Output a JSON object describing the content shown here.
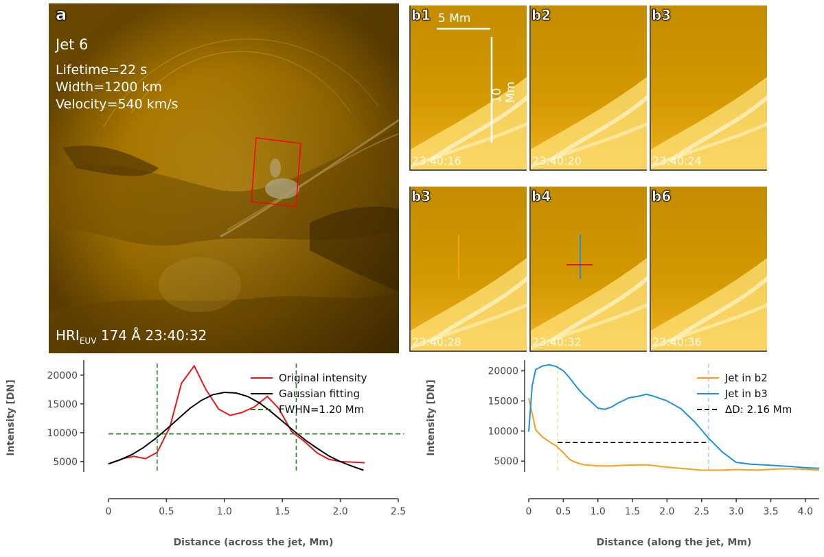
{
  "panel_a": {
    "tag": "a",
    "jet_name": "Jet 6",
    "lifetime": "Lifetime=22 s",
    "width": "Width=1200 km",
    "velocity": "Velocity=540 km/s",
    "instrument_main": "HRI",
    "instrument_sub": "EUV",
    "instrument_rest": " 174 Å 23:40:32"
  },
  "panels_b": [
    {
      "tag": "b1",
      "time": "23:40:16"
    },
    {
      "tag": "b2",
      "time": "23:40:20"
    },
    {
      "tag": "b3",
      "time": "23:40:24"
    },
    {
      "tag": "b3",
      "time": "23:40:28"
    },
    {
      "tag": "b4",
      "time": "23:40:32"
    },
    {
      "tag": "b6",
      "time": "23:40:36"
    }
  ],
  "scale_bars": {
    "horizontal": "5 Mm",
    "vertical": "10 Mm"
  },
  "colors": {
    "aia": "#d49a00",
    "red": "#e8161b",
    "blue": "#1f8fe0",
    "orange": "#f5a01a",
    "green": "#1a7f1a",
    "black": "#000000"
  },
  "chart_data": [
    {
      "type": "line",
      "xlabel": "Distance (across the jet, Mm)",
      "ylabel": "Intensity [DN]",
      "xlim": [
        0,
        2.5
      ],
      "ylim": [
        3200,
        22000
      ],
      "xticks": [
        "0",
        "0.5",
        "1.0",
        "1.5",
        "2.0",
        "2.5"
      ],
      "xtick_values": [
        0,
        0.5,
        1.0,
        1.5,
        2.0,
        2.5
      ],
      "yticks": [
        "5000",
        "10000",
        "15000",
        "20000"
      ],
      "ytick_values": [
        5000,
        10000,
        15000,
        20000
      ],
      "legend_position": "top-right",
      "series": [
        {
          "name": "Original intensity",
          "color": "#e8161b",
          "x": [
            0,
            0.12,
            0.22,
            0.32,
            0.42,
            0.53,
            0.63,
            0.74,
            0.84,
            0.95,
            1.05,
            1.15,
            1.26,
            1.37,
            1.47,
            1.58,
            1.69,
            1.8,
            1.9,
            2.0,
            2.11,
            2.21
          ],
          "y": [
            4600,
            5500,
            5900,
            5500,
            6600,
            11000,
            18600,
            21600,
            17500,
            14100,
            13000,
            13500,
            14500,
            16300,
            14200,
            10200,
            8500,
            6500,
            5400,
            5000,
            4900,
            4800
          ]
        },
        {
          "name": "Gaussian fitting",
          "color": "#000000",
          "x": [
            0,
            0.1,
            0.2,
            0.3,
            0.4,
            0.5,
            0.6,
            0.7,
            0.8,
            0.9,
            1.0,
            1.1,
            1.2,
            1.3,
            1.4,
            1.5,
            1.6,
            1.7,
            1.8,
            1.9,
            2.0,
            2.1,
            2.2
          ],
          "y": [
            4600,
            5300,
            6200,
            7400,
            8900,
            10600,
            12400,
            14200,
            15600,
            16600,
            17000,
            16900,
            16300,
            15200,
            13700,
            12000,
            10300,
            8700,
            7300,
            6000,
            5000,
            4200,
            3500
          ]
        },
        {
          "name": "FWHN=1.20 Mm",
          "color": "#1a7f1a",
          "dashed": true,
          "x": [
            0,
            2.55
          ],
          "y": [
            9800,
            9800
          ]
        }
      ],
      "vlines": [
        0.42,
        1.62
      ]
    },
    {
      "type": "line",
      "xlabel": "Distance (along the jet, Mm)",
      "ylabel": "Intensity [DN]",
      "xlim": [
        0,
        4.2
      ],
      "ylim": [
        3200,
        21200
      ],
      "xticks": [
        "0",
        "0.5",
        "1.0",
        "1.5",
        "2.0",
        "2.5",
        "3.0",
        "3.5",
        "4.0"
      ],
      "xtick_values": [
        0,
        0.5,
        1.0,
        1.5,
        2.0,
        2.5,
        3.0,
        3.5,
        4.0
      ],
      "yticks": [
        "5000",
        "10000",
        "15000",
        "20000"
      ],
      "ytick_values": [
        5000,
        10000,
        15000,
        20000
      ],
      "legend_position": "top-right",
      "series": [
        {
          "name": "Jet in b2",
          "color": "#f5a01a",
          "x": [
            0,
            0.1,
            0.2,
            0.3,
            0.4,
            0.5,
            0.6,
            0.7,
            0.8,
            1.0,
            1.2,
            1.4,
            1.7,
            2.0,
            2.3,
            2.5,
            2.8,
            3.0,
            3.3,
            3.6,
            3.9,
            4.2
          ],
          "y": [
            15500,
            10200,
            9000,
            8200,
            7500,
            6400,
            5200,
            4700,
            4400,
            4200,
            4200,
            4300,
            4400,
            4000,
            3700,
            3500,
            3500,
            3600,
            3500,
            3700,
            3700,
            3500
          ]
        },
        {
          "name": "Jet in b3",
          "color": "#1f8fe0",
          "x": [
            0,
            0.05,
            0.1,
            0.2,
            0.3,
            0.4,
            0.5,
            0.6,
            0.7,
            0.8,
            0.9,
            1.0,
            1.1,
            1.2,
            1.3,
            1.45,
            1.6,
            1.7,
            1.8,
            1.9,
            2.0,
            2.2,
            2.4,
            2.6,
            2.8,
            3.0,
            3.2,
            3.5,
            3.8,
            4.0,
            4.2
          ],
          "y": [
            9900,
            17500,
            20200,
            20800,
            21000,
            20700,
            20000,
            18700,
            17200,
            15900,
            14900,
            13800,
            13600,
            14000,
            14700,
            15500,
            15800,
            16100,
            15800,
            15400,
            15000,
            13700,
            11500,
            8800,
            6500,
            4800,
            4500,
            4300,
            4100,
            3900,
            3800
          ]
        },
        {
          "name": "ΔD: 2.16 Mm",
          "color": "#000000",
          "dashed": true,
          "x": [
            0.42,
            2.58
          ],
          "y": [
            8100,
            8100
          ]
        }
      ],
      "vlines": [
        0.42,
        2.6
      ],
      "vline_colors": [
        "#f0e2a0",
        "#a6d4ec"
      ]
    }
  ]
}
